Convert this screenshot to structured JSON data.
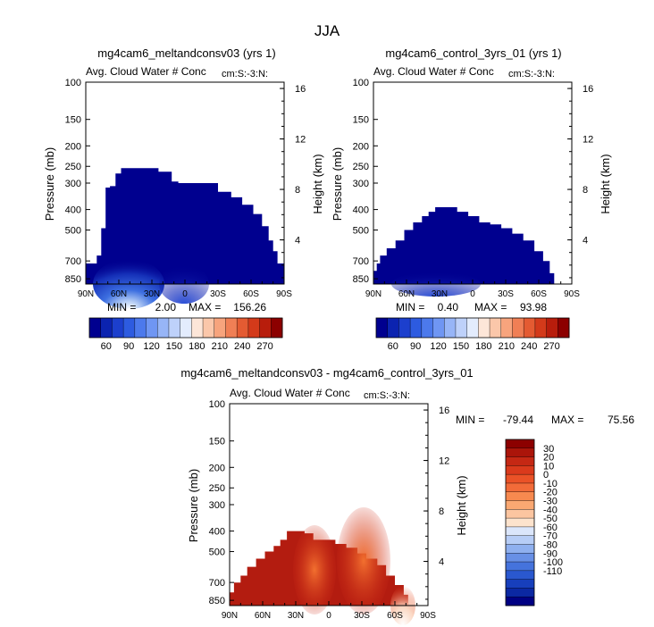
{
  "page_title": "JJA",
  "chart_data": [
    {
      "type": "contour",
      "title": "mg4cam6_meltandconsv03 (yrs 1)",
      "subtitle": "Avg. Cloud Water # Conc",
      "units": "cm:S:-3:N:",
      "ylabel": "Pressure (mb)",
      "y2label": "Height (km)",
      "x_ticks": [
        "90N",
        "60N",
        "30N",
        "0",
        "30S",
        "60S",
        "90S"
      ],
      "y_ticks": [
        "100",
        "150",
        "200",
        "250",
        "300",
        "400",
        "500",
        "700",
        "850"
      ],
      "y2_ticks": [
        "16",
        "12",
        "8",
        "4"
      ],
      "min_label": "MIN =",
      "min_value": "2.00",
      "max_label": "MAX =",
      "max_value": "156.26",
      "colorbar": {
        "labels": [
          "60",
          "90",
          "120",
          "150",
          "180",
          "210",
          "240",
          "270"
        ]
      },
      "top_profile": [
        [
          90,
          720
        ],
        [
          85,
          720
        ],
        [
          80,
          660
        ],
        [
          76,
          490
        ],
        [
          72,
          315
        ],
        [
          68,
          310
        ],
        [
          63,
          270
        ],
        [
          58,
          255
        ],
        [
          50,
          255
        ],
        [
          42,
          255
        ],
        [
          34,
          255
        ],
        [
          24,
          265
        ],
        [
          16,
          265
        ],
        [
          12,
          295
        ],
        [
          6,
          300
        ],
        [
          0,
          300
        ],
        [
          -10,
          300
        ],
        [
          -20,
          300
        ],
        [
          -30,
          330
        ],
        [
          -42,
          350
        ],
        [
          -52,
          380
        ],
        [
          -62,
          420
        ],
        [
          -70,
          480
        ],
        [
          -76,
          560
        ],
        [
          -80,
          630
        ],
        [
          -84,
          720
        ],
        [
          -90,
          720
        ]
      ]
    },
    {
      "type": "contour",
      "title": "mg4cam6_control_3yrs_01 (yrs 1)",
      "subtitle": "Avg. Cloud Water # Conc",
      "units": "cm:S:-3:N:",
      "ylabel": "Pressure (mb)",
      "y2label": "Height (km)",
      "x_ticks": [
        "90N",
        "60N",
        "30N",
        "0",
        "30S",
        "60S",
        "90S"
      ],
      "y_ticks": [
        "100",
        "150",
        "200",
        "250",
        "300",
        "400",
        "500",
        "700",
        "850"
      ],
      "y2_ticks": [
        "16",
        "12",
        "8",
        "4"
      ],
      "min_label": "MIN =",
      "min_value": "0.40",
      "max_label": "MAX =",
      "max_value": "93.98",
      "colorbar": {
        "labels": [
          "60",
          "90",
          "120",
          "150",
          "180",
          "210",
          "240",
          "270"
        ]
      },
      "top_profile": [
        [
          90,
          780
        ],
        [
          87,
          720
        ],
        [
          84,
          660
        ],
        [
          78,
          610
        ],
        [
          70,
          560
        ],
        [
          62,
          500
        ],
        [
          54,
          460
        ],
        [
          46,
          430
        ],
        [
          40,
          410
        ],
        [
          34,
          390
        ],
        [
          22,
          390
        ],
        [
          14,
          410
        ],
        [
          4,
          430
        ],
        [
          -6,
          460
        ],
        [
          -16,
          470
        ],
        [
          -26,
          490
        ],
        [
          -36,
          520
        ],
        [
          -46,
          560
        ],
        [
          -56,
          630
        ],
        [
          -64,
          700
        ],
        [
          -70,
          800
        ],
        [
          -74,
          850
        ]
      ]
    },
    {
      "type": "contour",
      "title": "mg4cam6_meltandconsv03 - mg4cam6_control_3yrs_01",
      "subtitle": "Avg. Cloud Water # Conc",
      "units": "cm:S:-3:N:",
      "ylabel": "Pressure (mb)",
      "y2label": "Height (km)",
      "x_ticks": [
        "90N",
        "60N",
        "30N",
        "0",
        "30S",
        "60S",
        "90S"
      ],
      "y_ticks": [
        "100",
        "150",
        "200",
        "250",
        "300",
        "400",
        "500",
        "700",
        "850"
      ],
      "y2_ticks": [
        "16",
        "12",
        "8",
        "4"
      ],
      "min_label": "MIN =",
      "min_value": "-79.44",
      "max_label": "MAX =",
      "max_value": "75.56",
      "colorbar": {
        "labels": [
          "30",
          "20",
          "10",
          "0",
          "-10",
          "-20",
          "-30",
          "-40",
          "-50",
          "-60",
          "-70",
          "-80",
          "-90",
          "-100",
          "-110"
        ]
      },
      "top_profile": [
        [
          90,
          780
        ],
        [
          86,
          700
        ],
        [
          80,
          650
        ],
        [
          74,
          590
        ],
        [
          66,
          540
        ],
        [
          58,
          500
        ],
        [
          50,
          470
        ],
        [
          44,
          440
        ],
        [
          38,
          400
        ],
        [
          30,
          400
        ],
        [
          22,
          410
        ],
        [
          14,
          440
        ],
        [
          4,
          440
        ],
        [
          -6,
          460
        ],
        [
          -16,
          480
        ],
        [
          -26,
          510
        ],
        [
          -34,
          540
        ],
        [
          -44,
          580
        ],
        [
          -52,
          650
        ],
        [
          -60,
          720
        ],
        [
          -68,
          800
        ],
        [
          -72,
          850
        ]
      ]
    }
  ]
}
